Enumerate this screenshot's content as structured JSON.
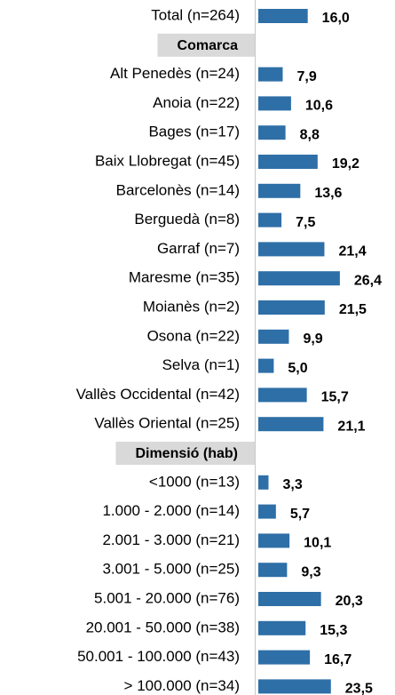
{
  "chart_data": {
    "type": "bar",
    "orientation": "horizontal",
    "color": "#2e6fa7",
    "xlim": [
      0,
      30
    ],
    "categories": [
      "Total (n=264)"
    ],
    "values": [
      16.0
    ],
    "value_labels": [
      "16,0"
    ],
    "groups": [
      {
        "name": "Comarca",
        "categories": [
          "Alt Penedès (n=24)",
          "Anoia (n=22)",
          "Bages (n=17)",
          "Baix Llobregat (n=45)",
          "Barcelonès (n=14)",
          "Berguedà (n=8)",
          "Garraf (n=7)",
          "Maresme (n=35)",
          "Moianès (n=2)",
          "Osona (n=22)",
          "Selva (n=1)",
          "Vallès Occidental (n=42)",
          "Vallès Oriental (n=25)"
        ],
        "values": [
          7.9,
          10.6,
          8.8,
          19.2,
          13.6,
          7.5,
          21.4,
          26.4,
          21.5,
          9.9,
          5.0,
          15.7,
          21.1
        ],
        "value_labels": [
          "7,9",
          "10,6",
          "8,8",
          "19,2",
          "13,6",
          "7,5",
          "21,4",
          "26,4",
          "21,5",
          "9,9",
          "5,0",
          "15,7",
          "21,1"
        ]
      },
      {
        "name": "Dimensió (hab)",
        "categories": [
          "<1000 (n=13)",
          "1.000 - 2.000 (n=14)",
          "2.001 - 3.000 (n=21)",
          "3.001 - 5.000 (n=25)",
          "5.001 - 20.000 (n=76)",
          "20.001 - 50.000 (n=38)",
          "50.001 - 100.000 (n=43)",
          "> 100.000 (n=34)"
        ],
        "values": [
          3.3,
          5.7,
          10.1,
          9.3,
          20.3,
          15.3,
          16.7,
          23.5
        ],
        "value_labels": [
          "3,3",
          "5,7",
          "10,1",
          "9,3",
          "20,3",
          "15,3",
          "16,7",
          "23,5"
        ]
      }
    ]
  }
}
